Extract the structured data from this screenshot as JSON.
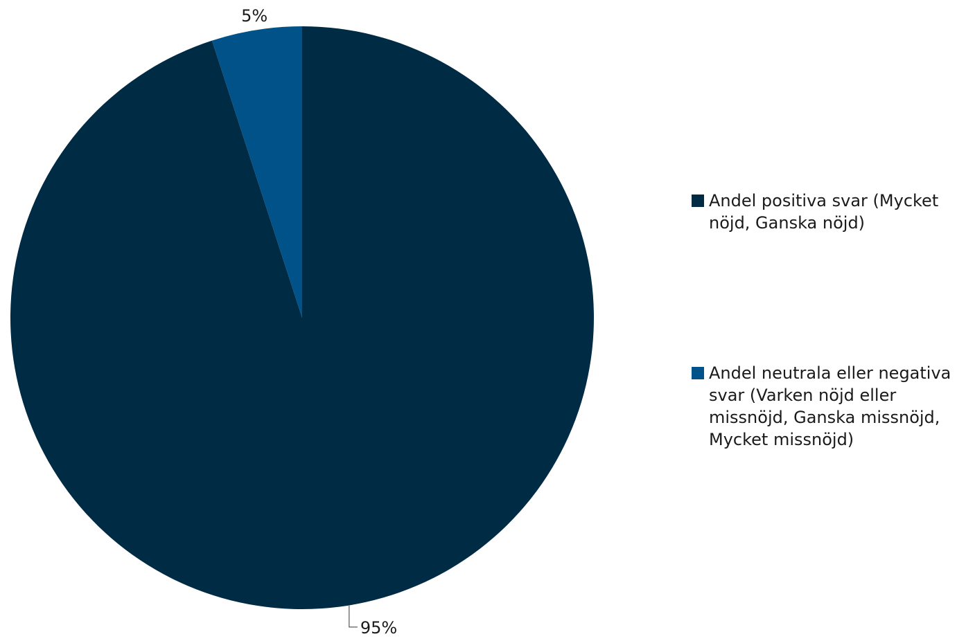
{
  "chart_data": {
    "type": "pie",
    "title": "",
    "series": [
      {
        "name": "Andel positiva svar (Mycket nöjd, Ganska nöjd)",
        "legend_lines": [
          "Andel positiva svar (Mycket",
          "nöjd, Ganska nöjd)"
        ],
        "value": 95,
        "label": "95%",
        "color": "#002b45"
      },
      {
        "name": "Andel neutrala eller negativa svar (Varken nöjd eller missnöjd, Ganska missnöjd, Mycket missnöjd)",
        "legend_lines": [
          "Andel neutrala eller negativa",
          "svar (Varken nöjd eller",
          "missnöjd, Ganska missnöjd,",
          "Mycket missnöjd)"
        ],
        "value": 5,
        "label": "5%",
        "color": "#005288"
      }
    ],
    "start_angle": "12 o'clock",
    "direction": "clockwise",
    "legend_position": "right",
    "label_color": "#1a1a1a",
    "leader_line_color": "#333333"
  }
}
